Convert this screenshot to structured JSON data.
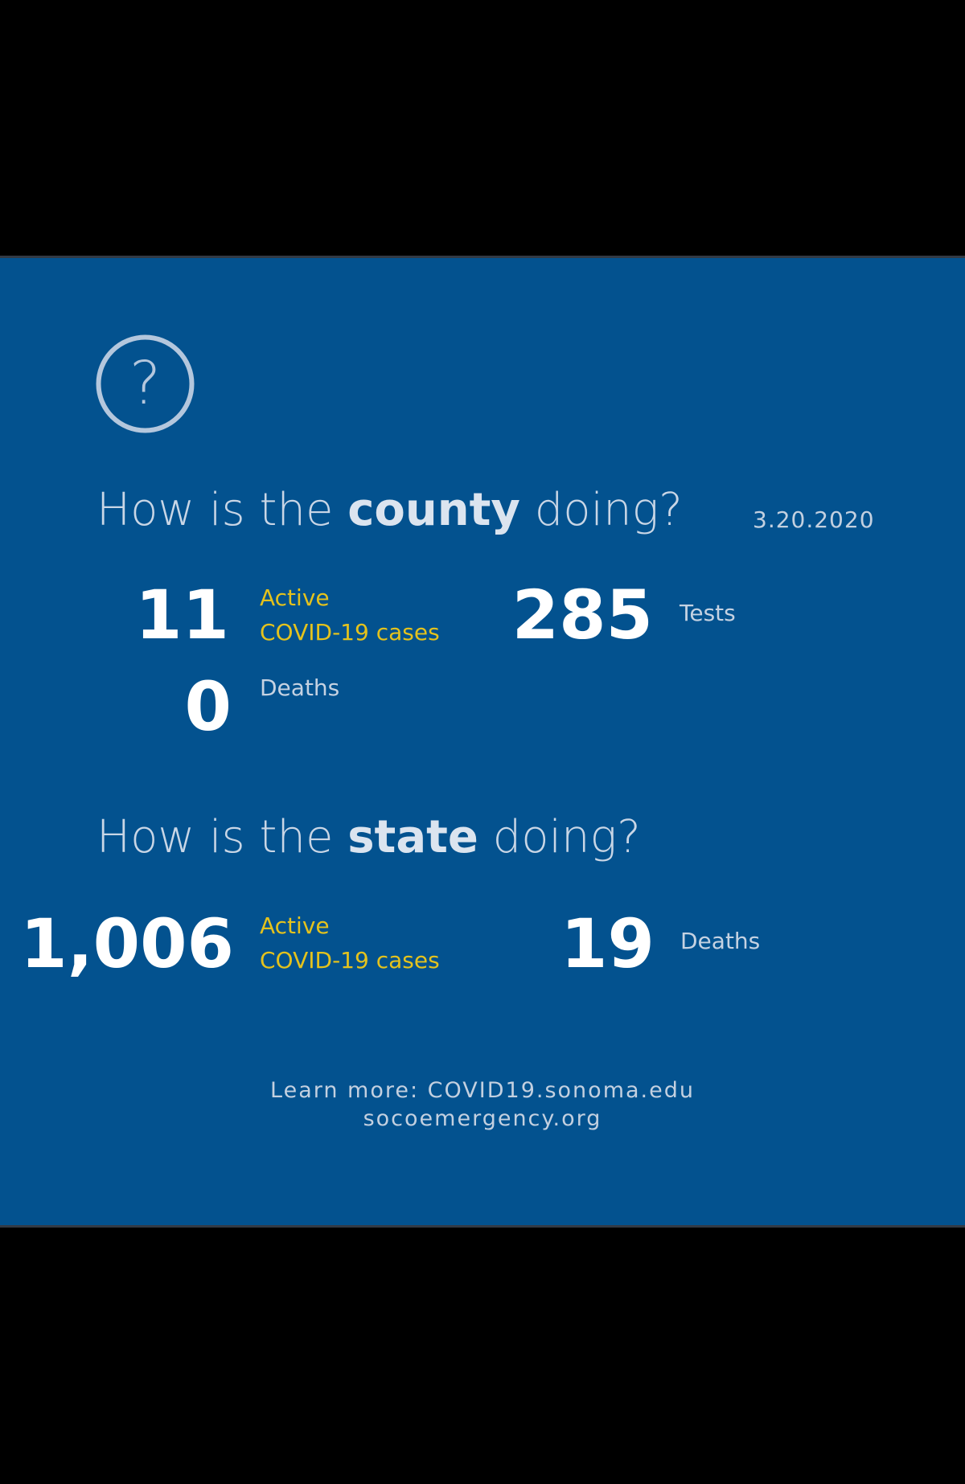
{
  "county": {
    "heading_pre": "How is the ",
    "heading_bold": "county",
    "heading_post": " doing?",
    "date": "3.20.2020",
    "active_cases": {
      "value": "11",
      "label_line1": "Active",
      "label_line2": "COVID-19 cases"
    },
    "tests": {
      "value": "285",
      "label": "Tests"
    },
    "deaths": {
      "value": "0",
      "label": "Deaths"
    }
  },
  "state": {
    "heading_pre": "How is the ",
    "heading_bold": "state",
    "heading_post": " doing?",
    "active_cases": {
      "value": "1,006",
      "label_line1": "Active",
      "label_line2": "COVID-19 cases"
    },
    "deaths": {
      "value": "19",
      "label": "Deaths"
    }
  },
  "footer": {
    "line1": "Learn more: COVID19.sonoma.edu",
    "line2": "socoemergency.org"
  },
  "icons": {
    "help": "question-circle-icon"
  },
  "colors": {
    "background": "#03528f",
    "accent_yellow": "#e4c21d",
    "number": "#ffffff"
  }
}
